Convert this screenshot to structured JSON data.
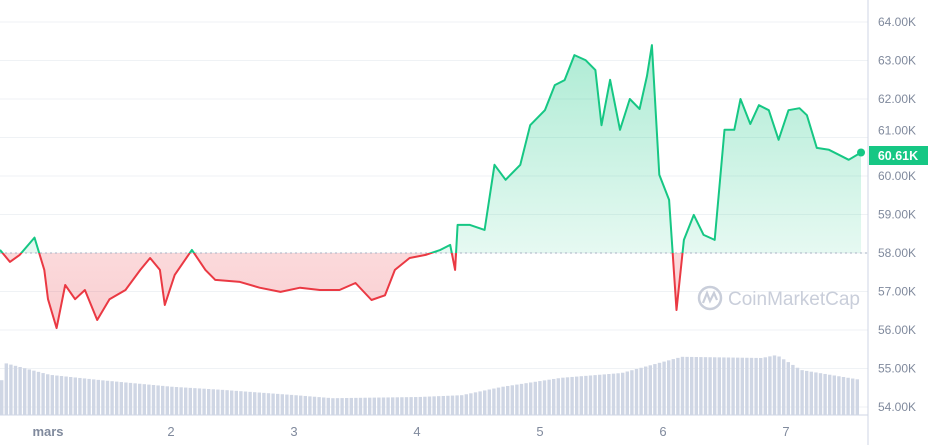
{
  "chart_data": {
    "type": "line",
    "title": "",
    "xlabel": "",
    "ylabel": "",
    "x_unit": "day of month (mars)",
    "x_ticks": [
      {
        "value": 1,
        "label": "mars"
      },
      {
        "value": 2,
        "label": "2"
      },
      {
        "value": 3,
        "label": "3"
      },
      {
        "value": 4,
        "label": "4"
      },
      {
        "value": 5,
        "label": "5"
      },
      {
        "value": 6,
        "label": "6"
      },
      {
        "value": 7,
        "label": "7"
      }
    ],
    "y_ticks": [
      "54.00K",
      "55.00K",
      "56.00K",
      "57.00K",
      "58.00K",
      "59.00K",
      "60.00K",
      "61.00K",
      "62.00K",
      "63.00K",
      "64.00K"
    ],
    "ylim": [
      54000,
      64000
    ],
    "xlim": [
      0.61,
      7.67
    ],
    "grid": true,
    "baseline": 58000,
    "current_price_label": "60.61K",
    "watermark": "CoinMarketCap",
    "colors": {
      "up": "#16c784",
      "down": "#ea3943",
      "volume": "#cfd6e4",
      "grid": "#eff2f5",
      "axis_text": "#808a9d"
    },
    "series": [
      {
        "x": [
          0.61,
          0.69,
          0.77,
          0.89,
          0.97,
          1.0,
          1.07,
          1.14,
          1.22,
          1.3,
          1.4,
          1.5,
          1.63,
          1.75,
          1.83,
          1.91,
          1.95,
          2.03,
          2.17,
          2.28,
          2.36,
          2.56,
          2.72,
          2.89,
          3.05,
          3.21,
          3.37,
          3.5,
          3.63,
          3.74,
          3.82,
          3.94,
          4.07,
          4.19,
          4.27,
          4.31,
          4.33,
          4.43,
          4.55,
          4.63,
          4.72,
          4.84,
          4.92,
          5.04,
          5.12,
          5.2,
          5.28,
          5.37,
          5.45,
          5.5,
          5.57,
          5.65,
          5.73,
          5.81,
          5.87,
          5.91,
          5.97,
          6.05,
          6.11,
          6.17,
          6.25,
          6.33,
          6.42,
          6.5,
          6.58,
          6.63,
          6.71,
          6.78,
          6.86,
          6.94,
          7.02,
          7.11,
          7.17,
          7.25,
          7.35,
          7.43,
          7.51,
          7.61
        ],
        "y": [
          58080,
          57770,
          57950,
          58400,
          57560,
          56800,
          56050,
          57170,
          56800,
          57040,
          56260,
          56800,
          57040,
          57560,
          57870,
          57560,
          56650,
          57430,
          58080,
          57560,
          57300,
          57250,
          57100,
          56990,
          57100,
          57040,
          57040,
          57220,
          56780,
          56900,
          57560,
          57870,
          57950,
          58080,
          58210,
          57560,
          58730,
          58730,
          58600,
          60290,
          59900,
          60290,
          61320,
          61710,
          62360,
          62490,
          63140,
          63010,
          62750,
          61320,
          62500,
          61200,
          62000,
          61740,
          62600,
          63400,
          60030,
          59380,
          56520,
          58340,
          58990,
          58470,
          58340,
          61200,
          61200,
          62000,
          61350,
          61840,
          61710,
          60940,
          61710,
          61760,
          61580,
          60730,
          60680,
          60550,
          60420,
          60610
        ]
      }
    ],
    "volume_relative": {
      "x": [
        0.61,
        1.0,
        1.42,
        2.0,
        2.4,
        3.0,
        3.3,
        4.0,
        4.35,
        4.68,
        5.16,
        5.65,
        6.14,
        6.79,
        6.91,
        7.11,
        7.61
      ],
      "values": [
        88,
        67,
        58,
        47,
        42,
        33,
        28,
        30,
        33,
        47,
        62,
        70,
        97,
        95,
        100,
        75,
        58
      ]
    }
  }
}
